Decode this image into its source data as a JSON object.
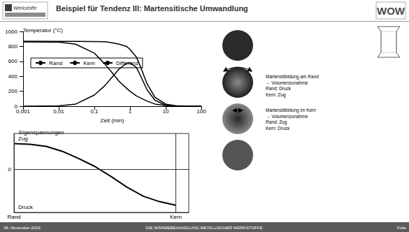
{
  "header": {
    "title": "Beispiel für Tendenz III: Martensitische Umwandlung",
    "logo_left": "Werkstoffe",
    "logo_right": "WOW"
  },
  "chart_data": [
    {
      "type": "line",
      "title": "Temperatur (°C)",
      "x_label": "Zeit (min)",
      "log": "x",
      "x": [
        0.001,
        0.01,
        0.03,
        0.1,
        0.2,
        0.3,
        0.5,
        0.8,
        1,
        1.5,
        2,
        3,
        5,
        10,
        20,
        100
      ],
      "series": [
        {
          "name": "Rand",
          "color": "#000000",
          "line_style": "solid",
          "values": [
            860,
            858,
            830,
            710,
            560,
            460,
            330,
            240,
            200,
            140,
            110,
            70,
            30,
            10,
            0,
            0
          ]
        },
        {
          "name": "Kern",
          "color": "#000000",
          "line_style": "solid",
          "values": [
            870,
            868,
            867,
            865,
            862,
            850,
            830,
            800,
            760,
            660,
            520,
            300,
            120,
            30,
            5,
            0
          ]
        },
        {
          "name": "Differenz",
          "color": "#000000",
          "line_style": "solid",
          "values": [
            0,
            5,
            30,
            150,
            280,
            380,
            500,
            575,
            580,
            520,
            400,
            220,
            80,
            15,
            0,
            0
          ]
        }
      ],
      "xlim": [
        0.001,
        100
      ],
      "xticks": [
        {
          "value": 0.001,
          "label": "0,001"
        },
        {
          "value": 0.01,
          "label": "0,01"
        },
        {
          "value": 0.1,
          "label": "0,1"
        },
        1,
        10,
        100
      ],
      "ylim": [
        0,
        1000
      ],
      "yticks": [
        0,
        200,
        400,
        600,
        800,
        1000
      ],
      "grid": false,
      "legend": "left"
    },
    {
      "type": "line",
      "title": "Eigenspannungen",
      "annotations": [
        "Zug",
        "Druck"
      ],
      "x": [
        0,
        0.1,
        0.2,
        0.3,
        0.4,
        0.5,
        0.6,
        0.7,
        0.8,
        0.9,
        1
      ],
      "values": [
        0.72,
        0.7,
        0.64,
        0.5,
        0.3,
        0.08,
        -0.2,
        -0.5,
        -0.75,
        -0.9,
        -1.0
      ],
      "color": "#000000",
      "xlim": [
        0,
        1.08
      ],
      "xticks": [
        {
          "value": 0,
          "label": "Rand"
        },
        {
          "value": 1,
          "label": "Kern"
        }
      ],
      "ylim": [
        -1.2,
        1
      ],
      "yticks": [
        0
      ],
      "grid": true
    }
  ],
  "diagram": {
    "notes": [
      [
        "Martensitbildung am Rand",
        "→ Volumenzunahme",
        "Rand: Druck",
        "Kern: Zug"
      ],
      [
        "Martensitbildung im Kern",
        "→ Volumenzunahme",
        "Rand: Zug",
        "Kern: Druck"
      ]
    ]
  },
  "footer": {
    "date": "18. November 2019",
    "center": "DIE WÄRMEBEHANDLUNG METALLISCHER WERKSTOFFE",
    "page": "Folie"
  }
}
